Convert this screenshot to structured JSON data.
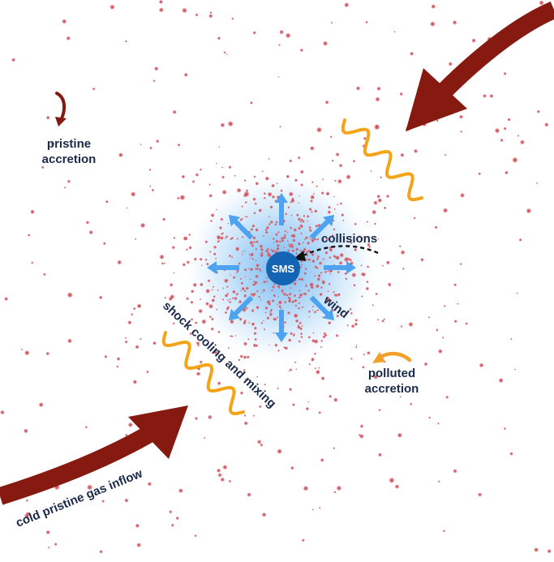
{
  "labels": {
    "sms": "SMS",
    "collisions": "collisions",
    "wind": "wind",
    "pristine_accretion_line1": "pristine",
    "pristine_accretion_line2": "accretion",
    "polluted_accretion_line1": "polluted",
    "polluted_accretion_line2": "accretion",
    "shock_cooling": "shock cooling and mixing",
    "cold_inflow": "cold pristine gas inflow"
  },
  "colors": {
    "star": "#c8434b",
    "glow": "#5aa9ee",
    "sms_fill": "#1464b4",
    "wind_arrow": "#4da3ef",
    "inflow_arrow": "#861a10",
    "shock_wave": "#f4a418",
    "polluted_arrow": "#f2a02a",
    "text": "#1b2a4a"
  },
  "icons": {
    "inflow": "big-curved-arrow-icon",
    "wind": "radial-arrow-icon",
    "shock": "wavy-line-icon",
    "collision": "dashed-curved-arrow-icon"
  }
}
